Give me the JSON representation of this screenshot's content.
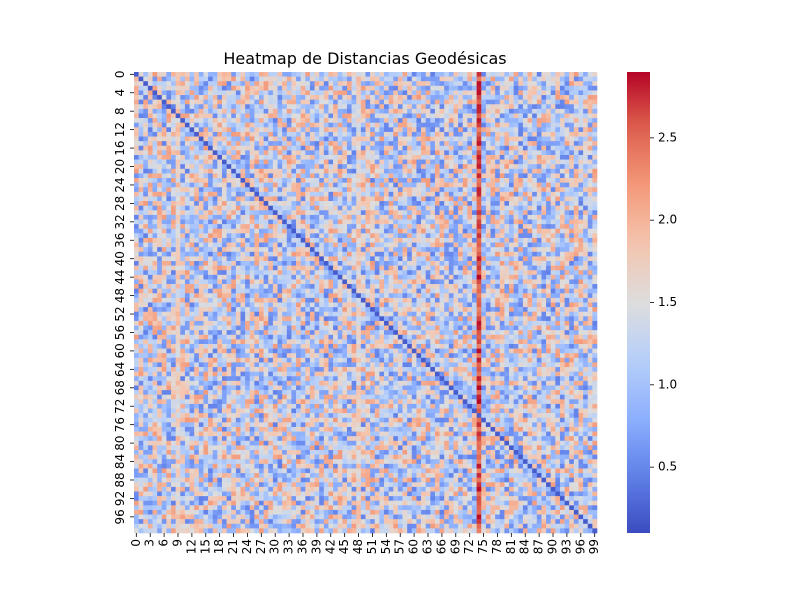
{
  "chart_data": {
    "type": "heatmap",
    "title": "Heatmap de Distancias Geodésicas",
    "xlabel": "",
    "ylabel": "",
    "n_rows": 100,
    "n_cols": 100,
    "x_tick_labels": [
      "0",
      "3",
      "6",
      "9",
      "12",
      "15",
      "18",
      "21",
      "24",
      "27",
      "30",
      "33",
      "36",
      "39",
      "42",
      "45",
      "48",
      "51",
      "54",
      "57",
      "60",
      "63",
      "66",
      "69",
      "72",
      "75",
      "78",
      "81",
      "84",
      "87",
      "90",
      "93",
      "96",
      "99"
    ],
    "y_tick_labels": [
      "0",
      "4",
      "8",
      "12",
      "16",
      "20",
      "24",
      "28",
      "32",
      "36",
      "40",
      "44",
      "48",
      "52",
      "56",
      "60",
      "64",
      "68",
      "72",
      "76",
      "80",
      "84",
      "88",
      "92",
      "96"
    ],
    "colorscale": "coolwarm",
    "colorbar": {
      "range": [
        0.1,
        2.9
      ],
      "ticks": [
        0.5,
        1.0,
        1.5,
        2.0,
        2.5
      ],
      "tick_labels": [
        "0.5",
        "1.0",
        "1.5",
        "2.0",
        "2.5"
      ]
    },
    "value_range": [
      0.1,
      2.9
    ],
    "typical_value": 1.3,
    "diagonal_value": 0.2,
    "high_column_index": 74,
    "high_column_value": 2.6,
    "elevated_columns": [
      9,
      48
    ],
    "elevated_value": 1.9
  }
}
